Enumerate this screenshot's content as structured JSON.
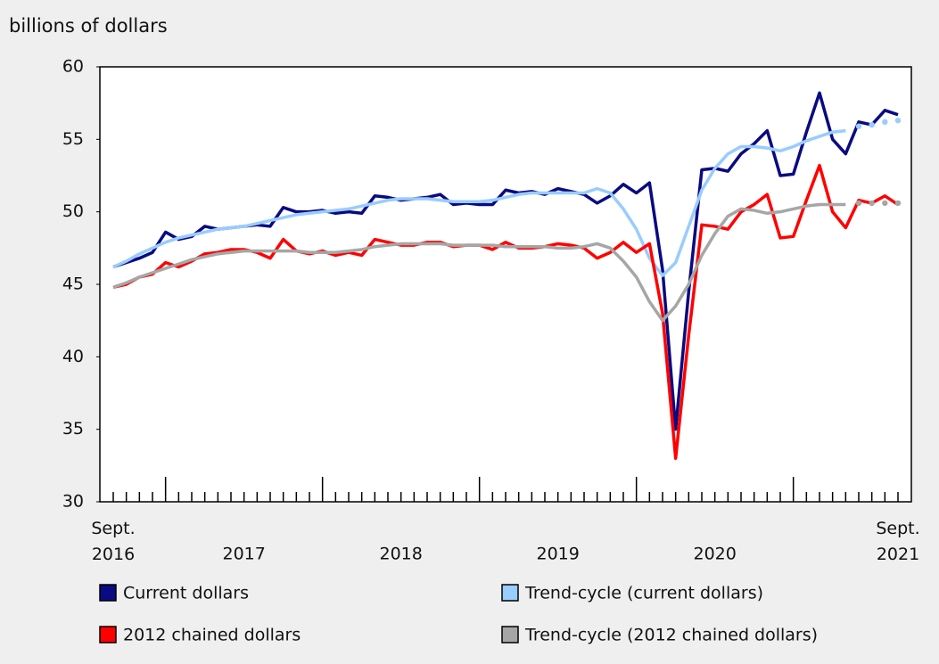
{
  "chart_data": {
    "type": "line",
    "y_axis_label": "billions of dollars",
    "categories": [
      "Sept. 2016",
      null,
      null,
      null,
      null,
      null,
      null,
      null,
      null,
      null,
      null,
      null,
      null,
      null,
      null,
      null,
      null,
      null,
      null,
      null,
      null,
      null,
      null,
      null,
      null,
      null,
      null,
      null,
      null,
      null,
      null,
      null,
      null,
      null,
      null,
      null,
      null,
      null,
      null,
      null,
      null,
      null,
      null,
      null,
      null,
      null,
      null,
      null,
      null,
      null,
      null,
      null,
      null,
      null,
      null,
      null,
      null,
      null,
      null,
      null,
      "Sept. 2021"
    ],
    "year_labels": [
      "2017",
      "2018",
      "2019",
      "2020"
    ],
    "ylim": [
      30,
      60
    ],
    "yticks": [
      30,
      35,
      40,
      45,
      50,
      55,
      60
    ],
    "grid": false,
    "series": [
      {
        "name": "Current dollars",
        "color": "#0a0a82",
        "values": [
          46.2,
          46.5,
          46.8,
          47.2,
          48.6,
          48.1,
          48.3,
          49.0,
          48.8,
          48.9,
          49.0,
          49.1,
          49.0,
          50.3,
          50.0,
          50.0,
          50.1,
          49.9,
          50.0,
          49.9,
          51.1,
          51.0,
          50.8,
          50.9,
          51.0,
          51.2,
          50.5,
          50.6,
          50.5,
          50.5,
          51.5,
          51.3,
          51.4,
          51.2,
          51.6,
          51.4,
          51.2,
          50.6,
          51.1,
          51.9,
          51.3,
          52.0,
          46.0,
          35.0,
          44.5,
          52.9,
          53.0,
          52.8,
          54.0,
          54.7,
          55.6,
          52.5,
          52.6,
          55.5,
          58.2,
          55.0,
          54.0,
          56.2,
          56.0,
          57.0,
          56.7
        ]
      },
      {
        "name": "Trend-cycle (current dollars)",
        "color": "#99ccff",
        "dotted_from": 57,
        "values": [
          46.2,
          46.6,
          47.1,
          47.5,
          47.9,
          48.2,
          48.4,
          48.6,
          48.8,
          48.9,
          49.0,
          49.2,
          49.4,
          49.6,
          49.8,
          49.9,
          50.0,
          50.1,
          50.2,
          50.4,
          50.6,
          50.8,
          50.9,
          50.9,
          50.9,
          50.8,
          50.7,
          50.7,
          50.7,
          50.8,
          51.0,
          51.2,
          51.3,
          51.3,
          51.3,
          51.3,
          51.3,
          51.6,
          51.3,
          50.2,
          48.8,
          46.8,
          45.6,
          46.5,
          49.0,
          51.5,
          53.0,
          54.0,
          54.5,
          54.5,
          54.4,
          54.2,
          54.5,
          54.9,
          55.2,
          55.5,
          55.6,
          55.9,
          56.0,
          56.2,
          56.3
        ]
      },
      {
        "name": "2012 chained dollars",
        "color": "#ff0000",
        "values": [
          44.8,
          45.0,
          45.5,
          45.7,
          46.5,
          46.2,
          46.6,
          47.1,
          47.2,
          47.4,
          47.4,
          47.2,
          46.8,
          48.1,
          47.3,
          47.1,
          47.3,
          47.0,
          47.2,
          47.0,
          48.1,
          47.9,
          47.7,
          47.7,
          47.9,
          47.9,
          47.6,
          47.7,
          47.7,
          47.4,
          47.9,
          47.5,
          47.5,
          47.6,
          47.8,
          47.7,
          47.5,
          46.8,
          47.2,
          47.9,
          47.2,
          47.8,
          43.0,
          33.0,
          41.5,
          49.1,
          49.0,
          48.8,
          50.0,
          50.5,
          51.2,
          48.2,
          48.3,
          50.8,
          53.2,
          50.0,
          48.9,
          50.8,
          50.6,
          51.1,
          50.5
        ]
      },
      {
        "name": "Trend-cycle (2012 chained dollars)",
        "color": "#a6a6a6",
        "dotted_from": 57,
        "values": [
          44.8,
          45.1,
          45.5,
          45.8,
          46.1,
          46.4,
          46.7,
          46.9,
          47.1,
          47.2,
          47.3,
          47.3,
          47.3,
          47.3,
          47.3,
          47.2,
          47.2,
          47.2,
          47.3,
          47.4,
          47.6,
          47.7,
          47.8,
          47.8,
          47.8,
          47.8,
          47.7,
          47.7,
          47.7,
          47.7,
          47.6,
          47.6,
          47.6,
          47.6,
          47.5,
          47.5,
          47.6,
          47.8,
          47.5,
          46.6,
          45.5,
          43.8,
          42.5,
          43.5,
          45.0,
          47.0,
          48.5,
          49.7,
          50.2,
          50.1,
          49.9,
          50.0,
          50.2,
          50.4,
          50.5,
          50.5,
          50.5,
          50.6,
          50.6,
          50.6,
          50.6
        ]
      }
    ]
  }
}
